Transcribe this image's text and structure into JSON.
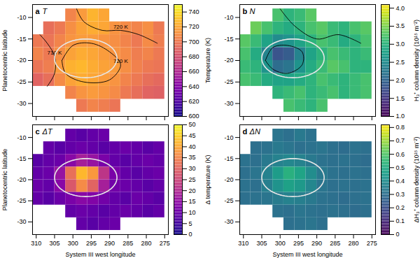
{
  "chart_data": [
    {
      "type": "heatmap",
      "panel": "a",
      "title": "T",
      "color": "plasma",
      "y_label": "Planetocentric latitude",
      "tick_labels": "y",
      "xlim": [
        311,
        274
      ],
      "ylim": [
        -33,
        -7
      ],
      "xticks": [
        310,
        305,
        300,
        295,
        290,
        285,
        280,
        275
      ],
      "yticks": [
        -10,
        -15,
        -20,
        -25,
        -30
      ],
      "x": [
        309.5,
        306.5,
        303.5,
        300.5,
        297.5,
        294.5,
        291.5,
        288.5,
        285.5,
        282.5,
        279.5,
        276.5
      ],
      "y": [
        -9.5,
        -12.5,
        -15.5,
        -18.5,
        -21.5,
        -24.5,
        -27.5,
        -30.5
      ],
      "z": [
        [
          null,
          null,
          null,
          705,
          715,
          725,
          720,
          null,
          null,
          null,
          null,
          null
        ],
        [
          null,
          695,
          700,
          710,
          718,
          722,
          720,
          712,
          708,
          705,
          710,
          700
        ],
        [
          700,
          698,
          705,
          712,
          716,
          715,
          712,
          710,
          705,
          700,
          708,
          702
        ],
        [
          705,
          700,
          710,
          718,
          722,
          720,
          716,
          712,
          708,
          702,
          705,
          700
        ],
        [
          698,
          702,
          715,
          724,
          726,
          722,
          718,
          716,
          710,
          704,
          700,
          698
        ],
        [
          690,
          695,
          708,
          718,
          722,
          720,
          716,
          712,
          705,
          700,
          695,
          692
        ],
        [
          null,
          null,
          null,
          705,
          712,
          715,
          712,
          708,
          700,
          695,
          690,
          688
        ],
        [
          null,
          null,
          null,
          null,
          700,
          705,
          702,
          698,
          null,
          null,
          null,
          null
        ]
      ],
      "color_label": "Temperature (K)",
      "color_range": [
        600,
        750
      ],
      "color_ticks": [
        600,
        620,
        640,
        660,
        680,
        700,
        720,
        740
      ],
      "ellipse": {
        "center": [
          296.5,
          -19.5
        ],
        "radii": [
          8.5,
          4.5
        ]
      },
      "contours": [
        {
          "label": "710 K",
          "points": [
            [
              309,
              -14
            ],
            [
              307,
              -16
            ],
            [
              305,
              -19
            ],
            [
              305,
              -23
            ],
            [
              307,
              -26
            ]
          ]
        },
        {
          "label": "720 K",
          "points": [
            [
              303,
              -20
            ],
            [
              300,
              -16.5
            ],
            [
              295,
              -16
            ],
            [
              290,
              -18
            ],
            [
              287,
              -21
            ],
            [
              290,
              -24.5
            ],
            [
              297,
              -25
            ],
            [
              302,
              -23
            ],
            [
              303,
              -20
            ]
          ]
        },
        {
          "label": "720 K",
          "points": [
            [
              299,
              -8
            ],
            [
              297,
              -11
            ],
            [
              292,
              -13
            ],
            [
              287,
              -13
            ],
            [
              282,
              -14
            ],
            [
              277,
              -16
            ]
          ]
        }
      ]
    },
    {
      "type": "heatmap",
      "panel": "b",
      "title": "N",
      "color": "viridis",
      "tick_labels": "y",
      "xlim": [
        311,
        274
      ],
      "ylim": [
        -33,
        -7
      ],
      "xticks": [
        310,
        305,
        300,
        295,
        290,
        285,
        280,
        275
      ],
      "yticks": [
        -10,
        -15,
        -20,
        -25,
        -30
      ],
      "x": [
        309.5,
        306.5,
        303.5,
        300.5,
        297.5,
        294.5,
        291.5,
        288.5,
        285.5,
        282.5,
        279.5,
        276.5
      ],
      "y": [
        -9.5,
        -12.5,
        -15.5,
        -18.5,
        -21.5,
        -24.5,
        -27.5,
        -30.5
      ],
      "z": [
        [
          null,
          null,
          null,
          3.2,
          3.0,
          3.1,
          3.3,
          null,
          null,
          null,
          null,
          null
        ],
        [
          null,
          3.4,
          3.2,
          3.0,
          2.9,
          3.0,
          3.2,
          3.3,
          3.1,
          3.0,
          3.2,
          3.3
        ],
        [
          3.3,
          3.1,
          2.8,
          2.5,
          2.6,
          2.8,
          3.0,
          3.2,
          3.1,
          2.9,
          3.0,
          3.2
        ],
        [
          3.2,
          2.9,
          2.4,
          1.8,
          1.9,
          2.4,
          2.8,
          3.0,
          3.2,
          3.1,
          3.0,
          3.1
        ],
        [
          3.1,
          3.0,
          2.6,
          2.1,
          2.2,
          2.6,
          2.9,
          3.1,
          3.3,
          3.2,
          3.0,
          3.0
        ],
        [
          3.2,
          3.1,
          2.9,
          2.8,
          2.8,
          2.9,
          3.0,
          3.2,
          3.1,
          3.0,
          3.1,
          3.2
        ],
        [
          null,
          null,
          null,
          3.0,
          3.1,
          3.2,
          3.0,
          3.1,
          3.2,
          3.0,
          3.1,
          3.2
        ],
        [
          null,
          null,
          null,
          null,
          3.2,
          3.1,
          3.0,
          3.2,
          null,
          null,
          null,
          null
        ]
      ],
      "color_label": "H₃⁺ column density (10¹⁵ m⁻²)",
      "color_range": [
        1,
        4.1
      ],
      "color_ticks": [
        {
          "value": 1,
          "label": "1.0"
        },
        1.5,
        {
          "value": 2,
          "label": "2.0"
        },
        2.5,
        {
          "value": 3,
          "label": "3.0"
        },
        3.5,
        {
          "value": 4,
          "label": "4.0"
        }
      ],
      "ellipse": {
        "center": [
          296.5,
          -19.5
        ],
        "radii": [
          8.5,
          4.5
        ]
      },
      "contours": [
        {
          "points": [
            [
              304,
              -20
            ],
            [
              302,
              -17
            ],
            [
              298,
              -16.5
            ],
            [
              294,
              -18
            ],
            [
              294,
              -21
            ],
            [
              298,
              -23
            ],
            [
              302,
              -22
            ],
            [
              304,
              -20
            ]
          ]
        },
        {
          "points": [
            [
              300,
              -8
            ],
            [
              296,
              -12
            ],
            [
              290,
              -15
            ],
            [
              284,
              -14
            ],
            [
              278,
              -16
            ]
          ]
        }
      ]
    },
    {
      "type": "heatmap",
      "panel": "c",
      "title": "ΔT",
      "color": "plasma",
      "x_label": "System III west longitude",
      "y_label": "Planetocentric latitude",
      "xlim": [
        311,
        274
      ],
      "ylim": [
        -33,
        -7
      ],
      "xticks": [
        310,
        305,
        300,
        295,
        290,
        285,
        280,
        275
      ],
      "yticks": [
        -10,
        -15,
        -20,
        -25,
        -30
      ],
      "x": [
        309.5,
        306.5,
        303.5,
        300.5,
        297.5,
        294.5,
        291.5,
        288.5,
        285.5,
        282.5,
        279.5,
        276.5
      ],
      "y": [
        -9.5,
        -12.5,
        -15.5,
        -18.5,
        -21.5,
        -24.5,
        -27.5,
        -30.5
      ],
      "z": [
        [
          null,
          null,
          null,
          9,
          8,
          9,
          10,
          null,
          null,
          null,
          null,
          null
        ],
        [
          null,
          9,
          8,
          9,
          10,
          9,
          8,
          9,
          10,
          9,
          8,
          9
        ],
        [
          8,
          9,
          10,
          14,
          18,
          16,
          12,
          9,
          8,
          9,
          10,
          9
        ],
        [
          9,
          10,
          16,
          32,
          42,
          38,
          22,
          12,
          9,
          8,
          9,
          10
        ],
        [
          10,
          9,
          14,
          28,
          36,
          30,
          18,
          11,
          10,
          9,
          8,
          9
        ],
        [
          9,
          8,
          10,
          12,
          14,
          13,
          11,
          9,
          8,
          10,
          9,
          8
        ],
        [
          null,
          null,
          null,
          9,
          10,
          9,
          8,
          9,
          10,
          9,
          8,
          9
        ],
        [
          null,
          null,
          null,
          null,
          9,
          8,
          9,
          10,
          null,
          null,
          null,
          null
        ]
      ],
      "color_label": "Δ temperature (K)",
      "color_range": [
        0,
        50
      ],
      "color_ticks": [
        0,
        5,
        10,
        15,
        20,
        25,
        30,
        35,
        40,
        45,
        50
      ],
      "ellipse": {
        "center": [
          296.5,
          -19.5
        ],
        "radii": [
          8.5,
          4.5
        ]
      }
    },
    {
      "type": "heatmap",
      "panel": "d",
      "title": "ΔN",
      "color": "viridis",
      "x_label": "System III west longitude",
      "xlim": [
        311,
        274
      ],
      "ylim": [
        -33,
        -7
      ],
      "xticks": [
        310,
        305,
        300,
        295,
        290,
        285,
        280,
        275
      ],
      "yticks": [
        -10,
        -15,
        -20,
        -25,
        -30
      ],
      "x": [
        309.5,
        306.5,
        303.5,
        300.5,
        297.5,
        294.5,
        291.5,
        288.5,
        285.5,
        282.5,
        279.5,
        276.5
      ],
      "y": [
        -9.5,
        -12.5,
        -15.5,
        -18.5,
        -21.5,
        -24.5,
        -27.5,
        -30.5
      ],
      "z": [
        [
          null,
          null,
          null,
          0.32,
          0.3,
          0.33,
          0.31,
          null,
          null,
          null,
          null,
          null
        ],
        [
          null,
          0.3,
          0.31,
          0.33,
          0.32,
          0.3,
          0.31,
          0.32,
          0.3,
          0.29,
          0.31,
          0.3
        ],
        [
          0.31,
          0.3,
          0.33,
          0.36,
          0.38,
          0.36,
          0.33,
          0.31,
          0.3,
          0.31,
          0.3,
          0.29
        ],
        [
          0.3,
          0.32,
          0.36,
          0.45,
          0.52,
          0.48,
          0.4,
          0.33,
          0.31,
          0.3,
          0.31,
          0.3
        ],
        [
          0.31,
          0.3,
          0.35,
          0.42,
          0.47,
          0.44,
          0.38,
          0.32,
          0.3,
          0.31,
          0.3,
          0.31
        ],
        [
          0.3,
          0.31,
          0.32,
          0.34,
          0.36,
          0.35,
          0.33,
          0.31,
          0.3,
          0.29,
          0.3,
          0.31
        ],
        [
          null,
          null,
          null,
          0.31,
          0.3,
          0.32,
          0.31,
          0.3,
          0.31,
          0.3,
          0.29,
          0.3
        ],
        [
          null,
          null,
          null,
          null,
          0.3,
          0.31,
          0.32,
          0.3,
          null,
          null,
          null,
          null
        ]
      ],
      "color_label": "ΔH₃⁺ column density (10¹⁵ m⁻²)",
      "color_range": [
        0,
        0.82
      ],
      "color_ticks": [
        0,
        0.1,
        0.2,
        0.3,
        0.4,
        0.5,
        0.6,
        0.7,
        0.8
      ],
      "ellipse": {
        "center": [
          296.5,
          -19.5
        ],
        "radii": [
          8.5,
          4.5
        ]
      }
    }
  ]
}
